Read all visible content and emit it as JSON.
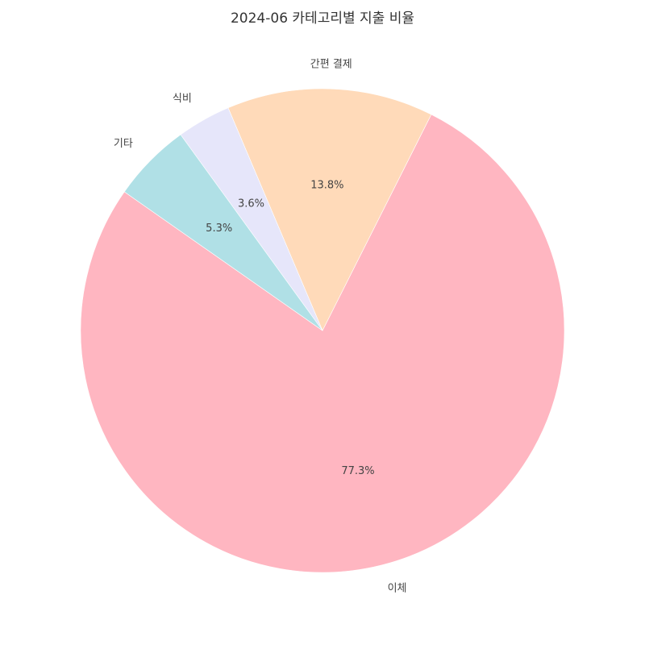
{
  "chart_data": {
    "type": "pie",
    "title": "2024-06 카테고리별 지출 비율",
    "start_angle_deg": 145,
    "direction": "counterclockwise",
    "slices": [
      {
        "label": "이체",
        "value": 77.3,
        "pct_label": "77.3%",
        "color": "#FFB6C1"
      },
      {
        "label": "간편 결제",
        "value": 13.8,
        "pct_label": "13.8%",
        "color": "#FFDAB9"
      },
      {
        "label": "식비",
        "value": 3.6,
        "pct_label": "3.6%",
        "color": "#E6E6FA"
      },
      {
        "label": "기타",
        "value": 5.3,
        "pct_label": "5.3%",
        "color": "#B0E0E6"
      }
    ]
  }
}
